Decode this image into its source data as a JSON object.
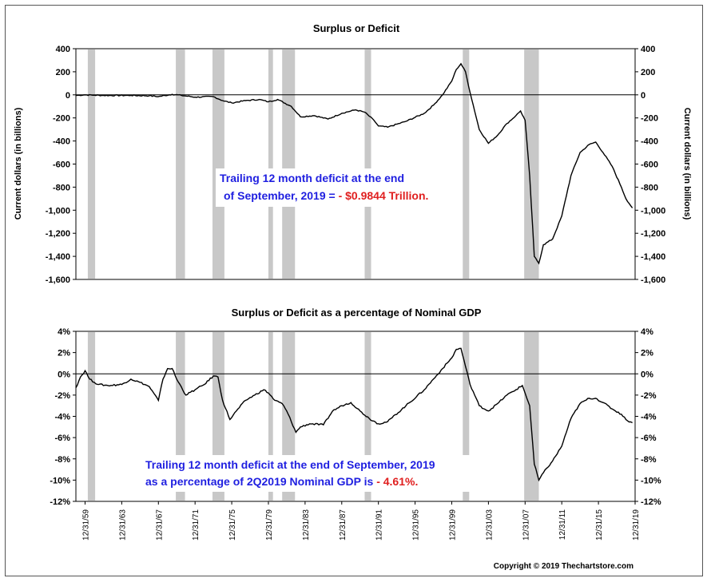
{
  "chart_data": [
    {
      "type": "line",
      "title": "Surplus or Deficit",
      "ylabel_left": "Current dollars (in billions)",
      "ylabel_right": "Current dollars (in billions)",
      "y_ticks": [
        "400",
        "200",
        "0",
        "-200",
        "-400",
        "-600",
        "-800",
        "-1,000",
        "-1,200",
        "-1,400",
        "-1,600"
      ],
      "ylim": [
        -1600,
        400
      ],
      "xlim": [
        1959.0,
        2020.0
      ],
      "annotation": {
        "line1": "Trailing 12 month deficit at the end",
        "line2_prefix": "of  September, 2019 = ",
        "line2_value": "- $0.9844 Trillion.",
        "text_color": "#1f1fe0",
        "value_color": "#e01f1f"
      },
      "series": [
        {
          "x": [
            1959.0,
            1960.0,
            1961.0,
            1962.0,
            1965.0,
            1967.0,
            1968.0,
            1969.5,
            1970.5,
            1972.0,
            1974.0,
            1975.0,
            1976.0,
            1977.5,
            1979.0,
            1980.0,
            1981.0,
            1982.5,
            1983.5,
            1985.0,
            1986.5,
            1988.0,
            1989.5,
            1990.5,
            1991.5,
            1992.0,
            1993.0,
            1995.0,
            1997.0,
            1998.0,
            1999.0,
            2000.0,
            2000.5,
            2001.0,
            2001.5,
            2002.0,
            2003.0,
            2004.0,
            2005.0,
            2006.0,
            2007.0,
            2007.5,
            2008.0,
            2008.5,
            2009.0,
            2009.5,
            2010.0,
            2011.0,
            2012.0,
            2013.0,
            2014.0,
            2015.0,
            2015.7,
            2016.5,
            2017.5,
            2018.5,
            2019.0,
            2019.7
          ],
          "y": [
            -5,
            0,
            -3,
            -5,
            -5,
            -8,
            -15,
            5,
            -5,
            -20,
            -15,
            -50,
            -70,
            -50,
            -40,
            -60,
            -40,
            -100,
            -190,
            -180,
            -210,
            -160,
            -130,
            -150,
            -220,
            -270,
            -280,
            -230,
            -160,
            -90,
            0,
            120,
            220,
            270,
            200,
            20,
            -300,
            -420,
            -350,
            -250,
            -180,
            -140,
            -220,
            -700,
            -1400,
            -1460,
            -1300,
            -1250,
            -1050,
            -700,
            -500,
            -430,
            -410,
            -500,
            -620,
            -800,
            -900,
            -980
          ]
        }
      ]
    },
    {
      "type": "line",
      "title": "Surplus or Deficit as a percentage of Nominal GDP",
      "y_ticks": [
        "4%",
        "2%",
        "0%",
        "-2%",
        "-4%",
        "-6%",
        "-8%",
        "-10%",
        "-12%"
      ],
      "ylim": [
        -12,
        4
      ],
      "xlim": [
        1959.0,
        2020.0
      ],
      "annotation": {
        "line1": "Trailing 12 month deficit at the end of  September, 2019",
        "line2_prefix": "as a percentage of 2Q2019 Nominal GDP  is ",
        "line2_value": "- 4.61%.",
        "text_color": "#1f1fe0",
        "value_color": "#e01f1f"
      },
      "series": [
        {
          "x": [
            1959.0,
            1959.5,
            1960.0,
            1960.5,
            1961.0,
            1961.5,
            1962.5,
            1964.0,
            1965.0,
            1966.0,
            1967.0,
            1968.0,
            1968.5,
            1969.0,
            1969.5,
            1970.0,
            1971.0,
            1972.0,
            1973.0,
            1974.0,
            1974.5,
            1975.0,
            1975.8,
            1976.5,
            1977.5,
            1978.5,
            1979.5,
            1980.0,
            1980.7,
            1981.5,
            1982.0,
            1983.0,
            1983.5,
            1984.5,
            1986.0,
            1987.0,
            1988.0,
            1989.0,
            1990.0,
            1991.0,
            1992.0,
            1993.0,
            1995.0,
            1997.0,
            1998.0,
            1999.0,
            2000.0,
            2000.5,
            2001.0,
            2002.0,
            2003.0,
            2004.0,
            2005.0,
            2006.0,
            2007.0,
            2007.7,
            2008.5,
            2009.0,
            2009.5,
            2010.0,
            2011.0,
            2012.0,
            2013.0,
            2014.0,
            2015.0,
            2015.7,
            2016.5,
            2017.5,
            2018.5,
            2019.0,
            2019.7
          ],
          "y": [
            -1.3,
            -0.3,
            0.3,
            -0.5,
            -0.8,
            -1.0,
            -1.1,
            -1.0,
            -0.5,
            -0.8,
            -1.2,
            -2.5,
            -0.5,
            0.5,
            0.5,
            -0.5,
            -2.0,
            -1.5,
            -1.0,
            -0.2,
            -0.3,
            -2.5,
            -4.3,
            -3.5,
            -2.5,
            -2.0,
            -1.5,
            -1.8,
            -2.5,
            -2.8,
            -3.5,
            -5.5,
            -5.0,
            -4.7,
            -4.8,
            -3.5,
            -3.0,
            -2.7,
            -3.5,
            -4.2,
            -4.7,
            -4.5,
            -3.0,
            -1.5,
            -0.5,
            0.5,
            1.5,
            2.3,
            2.4,
            -1.0,
            -3.0,
            -3.5,
            -2.8,
            -2.0,
            -1.5,
            -1.1,
            -3.0,
            -8.5,
            -10.0,
            -9.3,
            -8.2,
            -6.8,
            -4.2,
            -2.8,
            -2.3,
            -2.3,
            -2.7,
            -3.3,
            -3.8,
            -4.3,
            -4.6
          ]
        }
      ]
    }
  ],
  "x_tick_labels": [
    "12/31/59",
    "12/31/63",
    "12/31/67",
    "12/31/71",
    "12/31/75",
    "12/31/79",
    "12/31/83",
    "12/31/87",
    "12/31/91",
    "12/31/95",
    "12/31/99",
    "12/31/03",
    "12/31/07",
    "12/31/11",
    "12/31/15",
    "12/31/19"
  ],
  "x_tick_years": [
    1960.0,
    1964.0,
    1968.0,
    1972.0,
    1976.0,
    1980.0,
    1984.0,
    1988.0,
    1992.0,
    1996.0,
    2000.0,
    2004.0,
    2008.0,
    2012.0,
    2016.0,
    2020.0
  ],
  "recessions": [
    [
      1960.3,
      1961.1
    ],
    [
      1969.9,
      1970.9
    ],
    [
      1973.9,
      1975.2
    ],
    [
      1980.0,
      1980.5
    ],
    [
      1981.5,
      1982.9
    ],
    [
      1990.5,
      1991.2
    ],
    [
      2001.2,
      2001.9
    ],
    [
      2007.9,
      2009.5
    ]
  ],
  "colors": {
    "line": "#000000",
    "recession": "#c8c8c8",
    "zero_line": "#000000"
  },
  "copyright": "Copyright © 2019 Thechartstore.com"
}
